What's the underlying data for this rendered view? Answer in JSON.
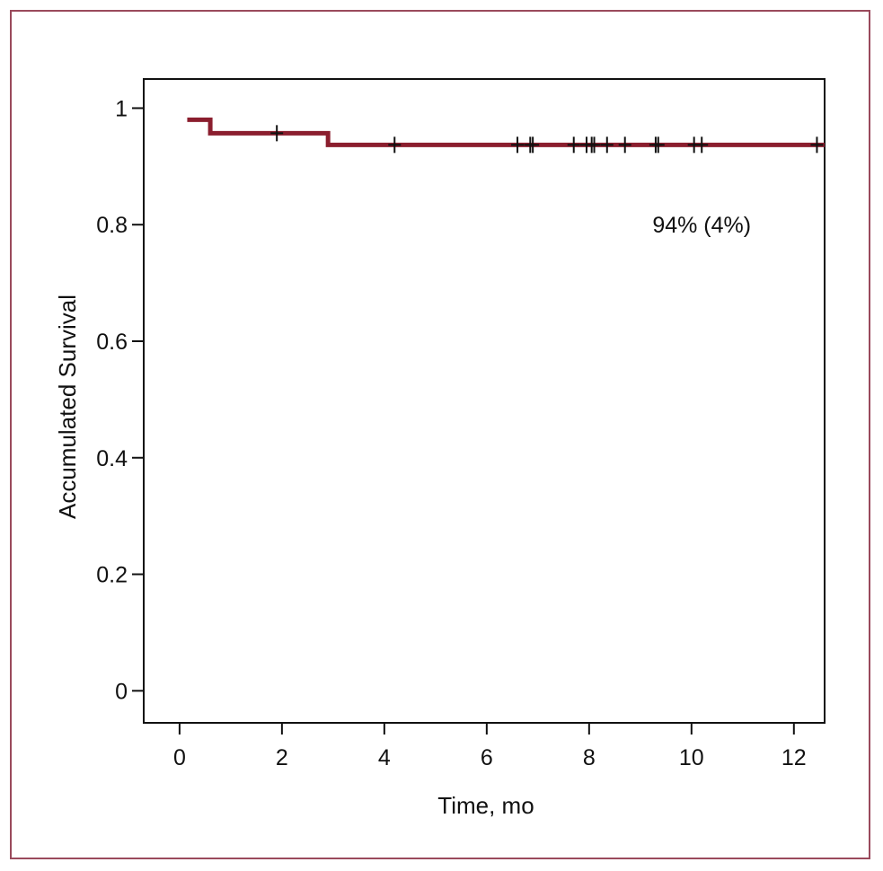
{
  "chart_data": {
    "type": "line",
    "subtype": "kaplan-meier",
    "title": "",
    "xlabel": "Time, mo",
    "ylabel": "Accumulated Survival",
    "xlim": [
      -0.7,
      12.6
    ],
    "ylim": [
      -0.055,
      1.05
    ],
    "x_ticks": [
      0,
      2,
      4,
      6,
      8,
      10,
      12
    ],
    "y_ticks": [
      0,
      0.2,
      0.4,
      0.6,
      0.8,
      1
    ],
    "x_tick_labels": [
      "0",
      "2",
      "4",
      "6",
      "8",
      "10",
      "12"
    ],
    "y_tick_labels": [
      "0",
      "0.2",
      "0.4",
      "0.6",
      "0.8",
      "1"
    ],
    "grid": false,
    "legend": "none",
    "series": [
      {
        "color": "#8b1e2e",
        "steps": [
          [
            0.15,
            0.98
          ],
          [
            0.6,
            0.957
          ],
          [
            2.9,
            0.937
          ],
          [
            12.6,
            0.937
          ]
        ],
        "censored": [
          1.9,
          4.2,
          6.6,
          6.85,
          6.9,
          7.7,
          7.95,
          8.05,
          8.1,
          8.35,
          8.7,
          9.3,
          9.35,
          10.05,
          10.2,
          12.45
        ]
      }
    ],
    "annotations": [
      {
        "text": "94% (4%)",
        "x": 10.2,
        "y": 0.8
      }
    ]
  }
}
